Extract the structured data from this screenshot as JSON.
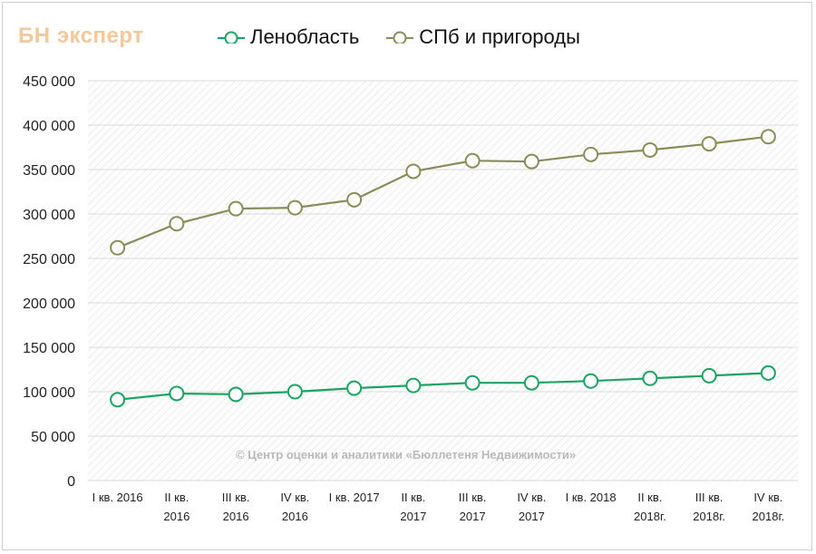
{
  "logo": "БН эксперт",
  "watermark": "© Центр оценки и аналитики «Бюллетеня Недвижимости»",
  "chart_data": {
    "type": "line",
    "title": "",
    "xlabel": "",
    "ylabel": "",
    "ylim": [
      0,
      450000
    ],
    "yticks": [
      "0",
      "50 000",
      "100 000",
      "150 000",
      "200 000",
      "250 000",
      "300 000",
      "350 000",
      "400 000",
      "450 000"
    ],
    "categories": [
      "I кв. 2016",
      "II кв. 2016",
      "III кв. 2016",
      "IV кв. 2016",
      "I кв. 2017",
      "II кв. 2017",
      "III кв. 2017",
      "IV кв. 2017",
      "I кв. 2018",
      "II кв. 2018г.",
      "III кв. 2018г.",
      "IV кв. 2018г."
    ],
    "category_lines": [
      [
        "I кв. 2016"
      ],
      [
        "II кв.",
        "2016"
      ],
      [
        "III кв.",
        "2016"
      ],
      [
        "IV кв.",
        "2016"
      ],
      [
        "I кв. 2017"
      ],
      [
        "II кв.",
        "2017"
      ],
      [
        "III кв.",
        "2017"
      ],
      [
        "IV кв.",
        "2017"
      ],
      [
        "I кв. 2018"
      ],
      [
        "II кв.",
        "2018г."
      ],
      [
        "III кв.",
        "2018г."
      ],
      [
        "IV кв.",
        "2018г."
      ]
    ],
    "grid": true,
    "legend_position": "top",
    "series": [
      {
        "name": "Ленобласть",
        "color": "#1aa361",
        "values": [
          91000,
          98000,
          97000,
          100000,
          104000,
          107000,
          110000,
          110000,
          112000,
          115000,
          118000,
          121000
        ]
      },
      {
        "name": "СПб и пригороды",
        "color": "#8c8c5a",
        "values": [
          262000,
          289000,
          306000,
          307000,
          316000,
          348000,
          360000,
          359000,
          367000,
          372000,
          379000,
          387000
        ]
      }
    ]
  }
}
